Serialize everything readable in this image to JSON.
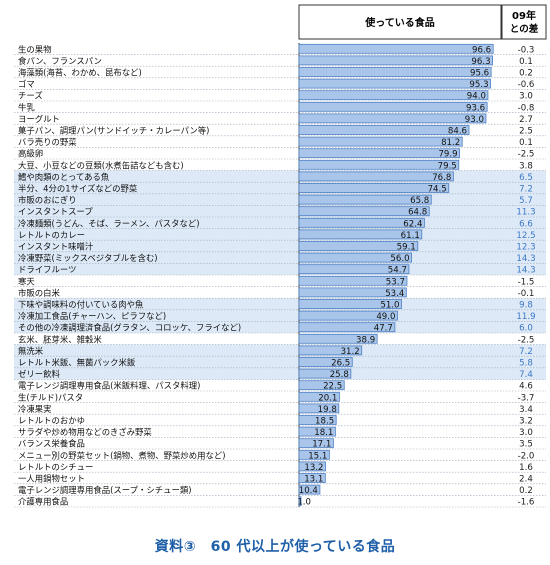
{
  "header": {
    "col_main": "使っている食品",
    "col_diff": "09年\nとの差"
  },
  "caption": "資料③　60 代以上が使っている食品",
  "colors": {
    "bar_fill": "#a9c6ea",
    "bar_edge": "#4d7fc4",
    "diff_blue": "#3b78c8",
    "diff_default": "#222222",
    "row_highlight": "#dde9f6"
  },
  "chart_data": {
    "type": "bar",
    "orientation": "horizontal",
    "xlim": [
      0,
      100
    ],
    "categories": [
      "生の果物",
      "食パン、フランスパン",
      "海藻類(海苔、わかめ、昆布など)",
      "ゴマ",
      "チーズ",
      "牛乳",
      "ヨーグルト",
      "菓子パン、調理パン(サンドイッチ・カレーパン等)",
      "バラ売りの野菜",
      "高級卵",
      "大豆、小豆などの豆類(水煮缶詰なども含む)",
      "鱈や肉類のとってある魚",
      "半分、4分の1サイズなどの野菜",
      "市販のおにぎり",
      "インスタントスープ",
      "冷凍麺類(うどん、そば、ラーメン、パスタなど)",
      "レトルトのカレー",
      "インスタント味噌汁",
      "冷凍野菜(ミックスベジタブルを含む)",
      "ドライフルーツ",
      "寒天",
      "市販の白米",
      "下味や調味料の付いている肉や魚",
      "冷凍加工食品(チャーハン、ピラフなど)",
      "その他の冷凍調理済食品(グラタン、コロッケ、フライなど)",
      "玄米、胚芽米、雑穀米",
      "無洗米",
      "レトルト米飯、無菌パック米飯",
      "ゼリー飲料",
      "電子レンジ調理専用食品(米飯料理、パスタ料理)",
      "生(チルド)パスタ",
      "冷凍果実",
      "レトルトのおかゆ",
      "サラダや炒め物用などのきざみ野菜",
      "バランス栄養食品",
      "メニュー別の野菜セット(鍋物、煮物、野菜炒め用など)",
      "レトルトのシチュー",
      "一人用鍋物セット",
      "電子レンジ調理専用食品(スープ・シチュー類)",
      "介護専用食品"
    ],
    "series": [
      {
        "name": "使っている食品",
        "values": [
          96.6,
          96.3,
          95.6,
          95.3,
          94.0,
          93.6,
          93.0,
          84.6,
          81.2,
          79.9,
          79.5,
          76.8,
          74.5,
          65.8,
          64.8,
          62.4,
          61.1,
          59.1,
          56.0,
          54.7,
          53.7,
          53.4,
          51.0,
          49.0,
          47.7,
          38.9,
          31.2,
          26.5,
          25.8,
          22.5,
          20.1,
          19.8,
          18.5,
          18.1,
          17.1,
          15.1,
          13.2,
          13.1,
          10.4,
          1.0
        ]
      },
      {
        "name": "09年との差",
        "values": [
          "-0.3",
          "0.1",
          "0.2",
          "-0.6",
          "3.0",
          "-0.8",
          "2.7",
          "2.5",
          "0.1",
          "-2.5",
          "3.8",
          "6.5",
          "7.2",
          "5.7",
          "11.3",
          "6.6",
          "12.5",
          "12.3",
          "14.3",
          "14.3",
          "-1.5",
          "-0.1",
          "9.8",
          "11.9",
          "6.0",
          "-2.5",
          "7.2",
          "5.8",
          "7.4",
          "4.6",
          "-3.7",
          "3.4",
          "3.2",
          "3.0",
          "3.5",
          "-2.0",
          "1.6",
          "2.4",
          "0.2",
          "-1.6"
        ]
      }
    ],
    "highlighted_diffs": [
      11,
      12,
      13,
      14,
      15,
      16,
      17,
      18,
      19,
      22,
      23,
      24,
      26,
      27,
      28
    ]
  }
}
